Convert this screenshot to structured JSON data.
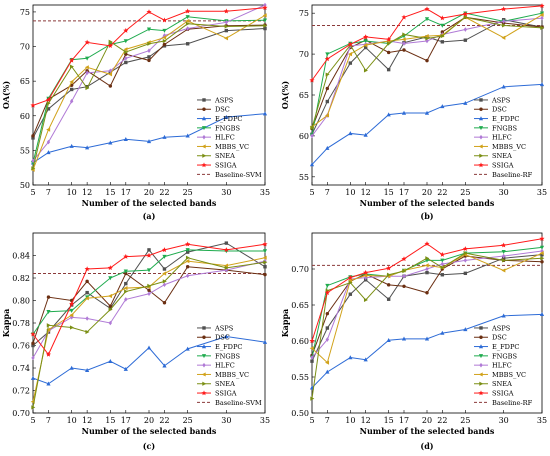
{
  "chart_data": [
    {
      "type": "line",
      "panel_label": "(a)",
      "xlabel": "Number of the selected bands",
      "ylabel": "OA(%)",
      "x": [
        5,
        7,
        10,
        12,
        15,
        17,
        20,
        22,
        25,
        30,
        35
      ],
      "xticks": [
        5,
        7,
        10,
        12,
        15,
        17,
        20,
        22,
        25,
        30,
        35
      ],
      "ylim": [
        50,
        76
      ],
      "yticks": [
        50,
        55,
        60,
        65,
        70,
        75
      ],
      "legend_position": "bottom-right",
      "baseline": {
        "name": "Baseline-SVM",
        "value": 73.7,
        "color": "#8b3a3a"
      },
      "series": [
        {
          "name": "ASPS",
          "color": "#505050",
          "marker": "square",
          "values": [
            56.8,
            61.0,
            63.8,
            64.2,
            66.3,
            67.7,
            68.5,
            70.1,
            70.4,
            72.3,
            72.6
          ]
        },
        {
          "name": "DSC",
          "color": "#6b2f12",
          "marker": "circle",
          "values": [
            57.1,
            62.4,
            64.4,
            66.5,
            64.3,
            68.9,
            68.0,
            70.3,
            72.5,
            73.0,
            73.1
          ]
        },
        {
          "name": "E_FDPC",
          "color": "#2d6bd6",
          "marker": "triangle-up",
          "values": [
            53.2,
            54.7,
            55.6,
            55.4,
            56.1,
            56.6,
            56.3,
            56.9,
            57.1,
            59.8,
            60.3
          ]
        },
        {
          "name": "FNGBS",
          "color": "#1fab4e",
          "marker": "triangle-down",
          "values": [
            53.2,
            62.5,
            68.1,
            68.3,
            70.3,
            70.8,
            72.5,
            72.3,
            74.3,
            73.7,
            73.8
          ]
        },
        {
          "name": "HLFC",
          "color": "#b07ad6",
          "marker": "diamond",
          "values": [
            53.5,
            56.2,
            62.1,
            66.2,
            66.5,
            68.3,
            69.4,
            71.6,
            72.6,
            73.5,
            76.0
          ]
        },
        {
          "name": "MBBS_VC",
          "color": "#d1a21a",
          "marker": "triangle-left",
          "values": [
            52.2,
            58.0,
            64.9,
            67.0,
            66.0,
            69.6,
            70.6,
            71.3,
            73.7,
            71.2,
            74.5
          ]
        },
        {
          "name": "SNEA",
          "color": "#7b8f14",
          "marker": "triangle-right",
          "values": [
            52.4,
            61.8,
            67.1,
            64.0,
            70.7,
            69.2,
            70.4,
            70.8,
            73.3,
            72.9,
            73.0
          ]
        },
        {
          "name": "SSIGA",
          "color": "#ff1a1a",
          "marker": "star",
          "values": [
            61.5,
            62.3,
            68.0,
            70.6,
            70.1,
            72.3,
            75.0,
            73.8,
            75.1,
            75.1,
            75.6
          ]
        }
      ]
    },
    {
      "type": "line",
      "panel_label": "(b)",
      "xlabel": "Number of the selected bands",
      "ylabel": "OA(%)",
      "x": [
        5,
        7,
        10,
        12,
        15,
        17,
        20,
        22,
        25,
        30,
        35
      ],
      "xticks": [
        5,
        7,
        10,
        12,
        15,
        17,
        20,
        22,
        25,
        30,
        35
      ],
      "ylim": [
        54,
        76
      ],
      "yticks": [
        55,
        60,
        65,
        70,
        75
      ],
      "legend_position": "bottom-right",
      "baseline": {
        "name": "Baseline-RF",
        "value": 73.5,
        "color": "#8b3a3a"
      },
      "series": [
        {
          "name": "ASPS",
          "color": "#505050",
          "marker": "square",
          "values": [
            60.2,
            64.2,
            68.9,
            70.8,
            68.1,
            71.4,
            72.1,
            71.5,
            71.7,
            74.2,
            73.3
          ]
        },
        {
          "name": "DSC",
          "color": "#6b2f12",
          "marker": "circle",
          "values": [
            60.9,
            65.8,
            70.8,
            71.7,
            70.2,
            70.5,
            69.2,
            72.7,
            74.5,
            73.8,
            73.3
          ]
        },
        {
          "name": "E_FDPC",
          "color": "#2d6bd6",
          "marker": "triangle-up",
          "values": [
            56.5,
            58.5,
            60.3,
            60.1,
            62.6,
            62.8,
            62.8,
            63.6,
            64.0,
            66.0,
            66.3
          ]
        },
        {
          "name": "FNGBS",
          "color": "#1fab4e",
          "marker": "triangle-down",
          "values": [
            60.1,
            70.0,
            71.3,
            71.6,
            71.3,
            72.2,
            74.3,
            73.5,
            75.0,
            74.0,
            75.0
          ]
        },
        {
          "name": "HLFC",
          "color": "#b07ad6",
          "marker": "diamond",
          "values": [
            60.0,
            62.5,
            71.0,
            71.2,
            71.6,
            71.3,
            71.6,
            72.4,
            73.0,
            74.0,
            74.4
          ]
        },
        {
          "name": "MBBS_VC",
          "color": "#d1a21a",
          "marker": "triangle-left",
          "values": [
            61.1,
            62.5,
            70.0,
            71.1,
            71.6,
            71.8,
            72.2,
            72.3,
            74.5,
            72.0,
            74.8
          ]
        },
        {
          "name": "SNEA",
          "color": "#7b8f14",
          "marker": "triangle-right",
          "values": [
            61.0,
            67.5,
            71.1,
            68.0,
            71.3,
            72.4,
            71.9,
            72.2,
            74.5,
            73.5,
            73.2
          ]
        },
        {
          "name": "SSIGA",
          "color": "#ff1a1a",
          "marker": "star",
          "values": [
            66.8,
            69.4,
            71.2,
            72.1,
            71.8,
            74.5,
            75.5,
            74.4,
            74.9,
            75.5,
            75.9
          ]
        }
      ]
    },
    {
      "type": "line",
      "panel_label": "(c)",
      "xlabel": "Number of the selected bands",
      "ylabel": "Kappa",
      "x": [
        5,
        7,
        10,
        12,
        15,
        17,
        20,
        22,
        25,
        30,
        35
      ],
      "xticks": [
        5,
        7,
        10,
        12,
        15,
        17,
        20,
        22,
        25,
        30,
        35
      ],
      "ylim": [
        0.7,
        0.86
      ],
      "yticks": [
        "0.70",
        "0.72",
        "0.74",
        "0.76",
        "0.78",
        "0.80",
        "0.82",
        "0.84"
      ],
      "legend_position": "bottom-right",
      "baseline": {
        "name": "Baseline-SVM",
        "value": 0.824,
        "color": "#8b3a3a"
      },
      "series": [
        {
          "name": "ASPS",
          "color": "#505050",
          "marker": "square",
          "values": [
            0.76,
            0.772,
            0.796,
            0.807,
            0.793,
            0.815,
            0.845,
            0.828,
            0.843,
            0.851,
            0.83
          ]
        },
        {
          "name": "DSC",
          "color": "#6b2f12",
          "marker": "circle",
          "values": [
            0.762,
            0.803,
            0.8,
            0.817,
            0.795,
            0.824,
            0.809,
            0.798,
            0.83,
            0.827,
            0.823
          ]
        },
        {
          "name": "E_FDPC",
          "color": "#2d6bd6",
          "marker": "triangle-up",
          "values": [
            0.731,
            0.726,
            0.74,
            0.738,
            0.746,
            0.739,
            0.758,
            0.742,
            0.757,
            0.768,
            0.763
          ]
        },
        {
          "name": "FNGBS",
          "color": "#1fab4e",
          "marker": "triangle-down",
          "values": [
            0.77,
            0.79,
            0.791,
            0.803,
            0.82,
            0.826,
            0.827,
            0.839,
            0.845,
            0.844,
            0.844
          ]
        },
        {
          "name": "HLFC",
          "color": "#b07ad6",
          "marker": "diamond",
          "values": [
            0.749,
            0.773,
            0.785,
            0.784,
            0.78,
            0.801,
            0.806,
            0.814,
            0.822,
            0.827,
            0.835
          ]
        },
        {
          "name": "MBBS_VC",
          "color": "#d1a21a",
          "marker": "triangle-left",
          "values": [
            0.71,
            0.774,
            0.787,
            0.802,
            0.804,
            0.811,
            0.812,
            0.824,
            0.835,
            0.831,
            0.838
          ]
        },
        {
          "name": "SNEA",
          "color": "#7b8f14",
          "marker": "triangle-right",
          "values": [
            0.705,
            0.778,
            0.776,
            0.772,
            0.792,
            0.808,
            0.813,
            0.817,
            0.838,
            0.829,
            0.834
          ]
        },
        {
          "name": "SSIGA",
          "color": "#ff1a1a",
          "marker": "star",
          "values": [
            0.77,
            0.752,
            0.797,
            0.828,
            0.829,
            0.839,
            0.84,
            0.845,
            0.85,
            0.845,
            0.85
          ]
        }
      ]
    },
    {
      "type": "line",
      "panel_label": "(d)",
      "xlabel": "Number of the selected bands",
      "ylabel": "Kappa",
      "x": [
        5,
        7,
        10,
        12,
        15,
        17,
        20,
        22,
        25,
        30,
        35
      ],
      "xticks": [
        5,
        7,
        10,
        12,
        15,
        17,
        20,
        22,
        25,
        30,
        35
      ],
      "ylim": [
        0.5,
        0.75
      ],
      "yticks": [
        "0.50",
        "0.55",
        "0.60",
        "0.65",
        "0.70"
      ],
      "legend_position": "bottom-right",
      "baseline": {
        "name": "Baseline-RF",
        "value": 0.705,
        "color": "#8b3a3a"
      },
      "series": [
        {
          "name": "ASPS",
          "color": "#505050",
          "marker": "square",
          "values": [
            0.572,
            0.618,
            0.665,
            0.685,
            0.658,
            0.69,
            0.695,
            0.692,
            0.694,
            0.715,
            0.72
          ]
        },
        {
          "name": "DSC",
          "color": "#6b2f12",
          "marker": "circle",
          "values": [
            0.58,
            0.638,
            0.683,
            0.693,
            0.678,
            0.676,
            0.667,
            0.7,
            0.718,
            0.712,
            0.71
          ]
        },
        {
          "name": "E_FDPC",
          "color": "#2d6bd6",
          "marker": "triangle-up",
          "values": [
            0.535,
            0.557,
            0.577,
            0.574,
            0.601,
            0.603,
            0.603,
            0.611,
            0.616,
            0.635,
            0.637
          ]
        },
        {
          "name": "FNGBS",
          "color": "#1fab4e",
          "marker": "triangle-down",
          "values": [
            0.577,
            0.677,
            0.689,
            0.693,
            0.69,
            0.698,
            0.712,
            0.712,
            0.722,
            0.724,
            0.73
          ]
        },
        {
          "name": "HLFC",
          "color": "#b07ad6",
          "marker": "diamond",
          "values": [
            0.577,
            0.602,
            0.686,
            0.688,
            0.69,
            0.69,
            0.7,
            0.707,
            0.712,
            0.718,
            0.725
          ]
        },
        {
          "name": "MBBS_VC",
          "color": "#d1a21a",
          "marker": "triangle-left",
          "values": [
            0.59,
            0.57,
            0.684,
            0.691,
            0.69,
            0.698,
            0.705,
            0.702,
            0.72,
            0.698,
            0.722
          ]
        },
        {
          "name": "SNEA",
          "color": "#7b8f14",
          "marker": "triangle-right",
          "values": [
            0.52,
            0.67,
            0.681,
            0.657,
            0.692,
            0.697,
            0.715,
            0.702,
            0.722,
            0.712,
            0.715
          ]
        },
        {
          "name": "SSIGA",
          "color": "#ff1a1a",
          "marker": "star",
          "values": [
            0.6,
            0.667,
            0.688,
            0.695,
            0.701,
            0.714,
            0.735,
            0.72,
            0.728,
            0.733,
            0.742
          ]
        }
      ]
    }
  ]
}
